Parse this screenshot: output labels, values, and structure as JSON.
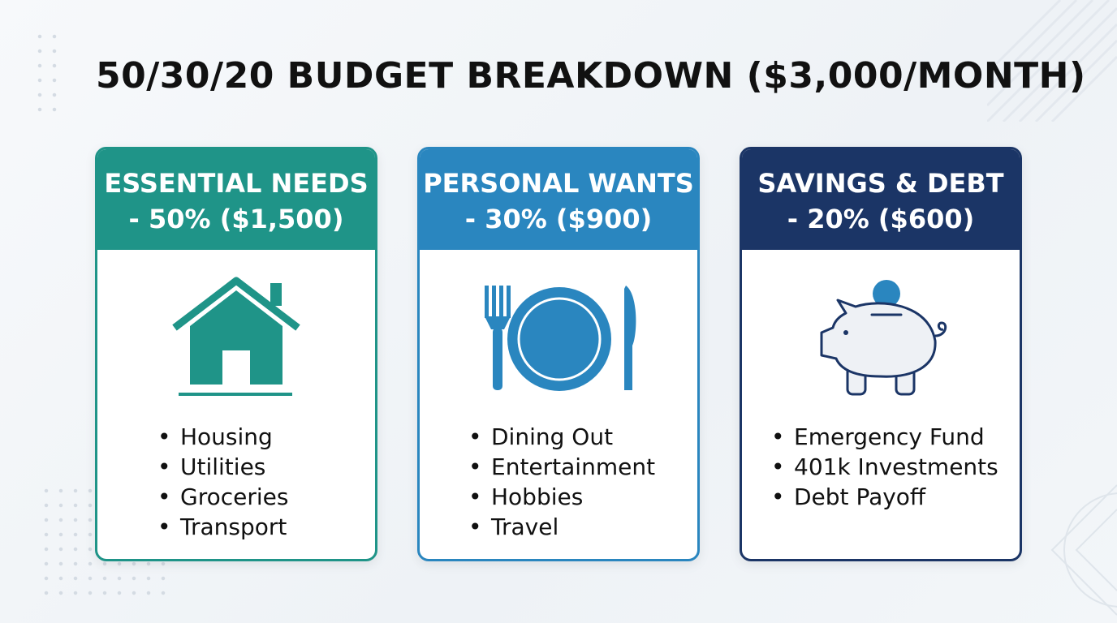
{
  "title": "50/30/20 BUDGET BREAKDOWN ($3,000/MONTH)",
  "cards": [
    {
      "heading": [
        "ESSENTIAL NEEDS",
        "- 50% ($1,500)"
      ],
      "items": [
        "Housing",
        "Utilities",
        "Groceries",
        "Transport"
      ]
    },
    {
      "heading": [
        "PERSONAL WANTS",
        "- 30% ($900)"
      ],
      "items": [
        "Dining Out",
        "Entertainment",
        "Hobbies",
        "Travel"
      ]
    },
    {
      "heading": [
        "SAVINGS & DEBT",
        "- 20% ($600)"
      ],
      "items": [
        "Emergency Fund",
        "401k Investments",
        "Debt Payoff"
      ]
    }
  ]
}
